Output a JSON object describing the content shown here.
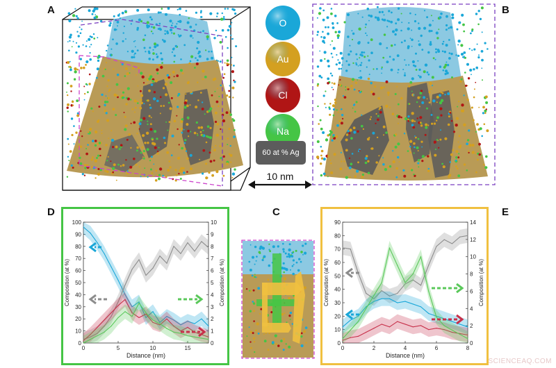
{
  "panel_letters": {
    "a": "A",
    "b": "B",
    "c": "C",
    "d": "D",
    "e": "E"
  },
  "legend": {
    "items": [
      {
        "label": "O",
        "color": "#1aa7d8"
      },
      {
        "label": "Au",
        "color": "#d4a020"
      },
      {
        "label": "Cl",
        "color": "#b01515"
      },
      {
        "label": "Na",
        "color": "#45c545"
      }
    ],
    "surface_label": "60 at % Ag"
  },
  "scale_bar": {
    "label": "10 nm"
  },
  "chart_data": [
    {
      "panel": "D",
      "type": "line",
      "xlabel": "Distance (nm)",
      "ylabel": "Composition (at %)",
      "ylabel_right": "Composition (at %)",
      "xlim": [
        0,
        18
      ],
      "ylim": [
        0,
        100
      ],
      "ylim_right": [
        0,
        10
      ],
      "xticks": [
        "0",
        "5",
        "10",
        "15"
      ],
      "yticks": [
        "0",
        "10",
        "20",
        "30",
        "40",
        "50",
        "60",
        "70",
        "80",
        "90",
        "100"
      ],
      "yticks_right": [
        "0",
        "1",
        "2",
        "3",
        "4",
        "5",
        "6",
        "7",
        "8",
        "9",
        "10"
      ],
      "border_color": "#45c545",
      "x": [
        0,
        1,
        2,
        3,
        4,
        5,
        6,
        7,
        8,
        9,
        10,
        11,
        12,
        13,
        14,
        15,
        16,
        17,
        18
      ],
      "series": [
        {
          "color": "#1aa7d8",
          "axis": "left",
          "values": [
            96,
            91,
            83,
            74,
            63,
            52,
            40,
            30,
            34,
            21,
            26,
            17,
            22,
            19,
            15,
            18,
            16,
            20,
            14
          ]
        },
        {
          "color": "#8c8c8c",
          "axis": "left",
          "values": [
            3,
            5,
            8,
            14,
            22,
            34,
            48,
            61,
            69,
            56,
            62,
            72,
            66,
            80,
            74,
            83,
            76,
            84,
            79
          ]
        },
        {
          "color": "#c7304a",
          "axis": "left",
          "values": [
            2,
            7,
            13,
            19,
            25,
            31,
            36,
            25,
            21,
            24,
            17,
            15,
            20,
            14,
            10,
            13,
            9,
            7,
            5
          ]
        },
        {
          "color": "#5ac85a",
          "axis": "right",
          "values": [
            0,
            0.3,
            0.6,
            0.9,
            1.4,
            2.1,
            2.6,
            2.2,
            3.3,
            2.5,
            1.9,
            1.6,
            1.2,
            0.9,
            0.8,
            0.6,
            0.5,
            0.4,
            0.3
          ]
        }
      ]
    },
    {
      "panel": "E",
      "type": "line",
      "xlabel": "Distance (nm)",
      "ylabel": "Composition (at %)",
      "ylabel_right": "Composition (at %)",
      "xlim": [
        0,
        8
      ],
      "ylim": [
        0,
        90
      ],
      "ylim_right": [
        0,
        14
      ],
      "xticks": [
        "0",
        "2",
        "4",
        "6",
        "8"
      ],
      "yticks": [
        "0",
        "10",
        "20",
        "30",
        "40",
        "50",
        "60",
        "70",
        "80",
        "90"
      ],
      "yticks_right": [
        "0",
        "2",
        "4",
        "6",
        "8",
        "10",
        "12",
        "14"
      ],
      "border_color": "#f0c040",
      "x": [
        0,
        0.5,
        1,
        1.5,
        2,
        2.5,
        3,
        3.5,
        4,
        4.5,
        5,
        5.5,
        6,
        6.5,
        7,
        7.5,
        8
      ],
      "series": [
        {
          "color": "#8c8c8c",
          "axis": "left",
          "values": [
            71,
            70,
            52,
            37,
            33,
            39,
            35,
            37,
            44,
            47,
            43,
            58,
            72,
            77,
            74,
            79,
            80
          ]
        },
        {
          "color": "#1aa7d8",
          "axis": "left",
          "values": [
            12,
            17,
            20,
            27,
            31,
            33,
            33,
            30,
            31,
            29,
            27,
            22,
            20,
            18,
            16,
            14,
            12
          ]
        },
        {
          "color": "#c7304a",
          "axis": "left",
          "values": [
            2,
            4,
            5,
            8,
            11,
            14,
            12,
            16,
            14,
            12,
            13,
            10,
            11,
            10,
            8,
            7,
            6
          ]
        },
        {
          "color": "#5ac85a",
          "axis": "right",
          "values": [
            0.5,
            1.5,
            2.5,
            4,
            5.5,
            7,
            11,
            9,
            7,
            8,
            10,
            6,
            3,
            2,
            1.5,
            1,
            0.5
          ]
        }
      ]
    }
  ]
}
